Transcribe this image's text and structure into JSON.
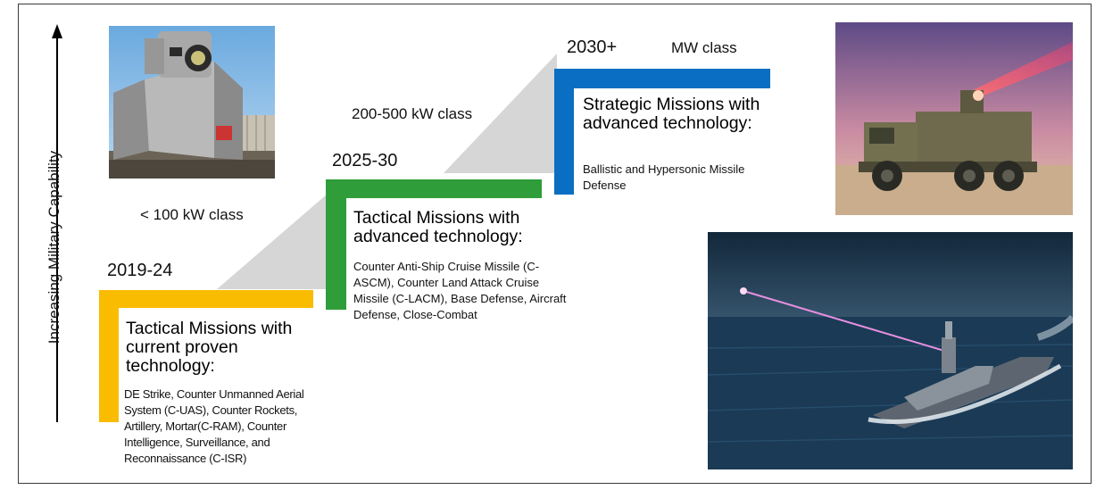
{
  "axis": {
    "label": "Increasing Military Capability"
  },
  "tiers": [
    {
      "years": "2019-24",
      "power_class": "< 100 kW class",
      "heading": "Tactical Missions with current proven technology:",
      "description": "DE Strike, Counter Unmanned Aerial System (C-UAS), Counter Rockets, Artillery, Mortar(C-RAM), Counter Intelligence, Surveillance, and Reconnaissance (C-ISR)",
      "color": "#f9bc00"
    },
    {
      "years": "2025-30",
      "power_class": "200-500 kW class",
      "heading": "Tactical Missions with advanced technology:",
      "description": "Counter Anti-Ship Cruise Missile (C-ASCM), Counter Land Attack Cruise Missile (C-LACM), Base Defense,  Aircraft Defense, Close-Combat",
      "color": "#2f9e3a"
    },
    {
      "years": "2030+",
      "power_class": "MW class",
      "heading": "Strategic Missions with advanced technology:",
      "description": "Ballistic and Hypersonic Missile Defense",
      "color": "#0a6fc2"
    }
  ],
  "wedge_color": "#d6d6d6"
}
